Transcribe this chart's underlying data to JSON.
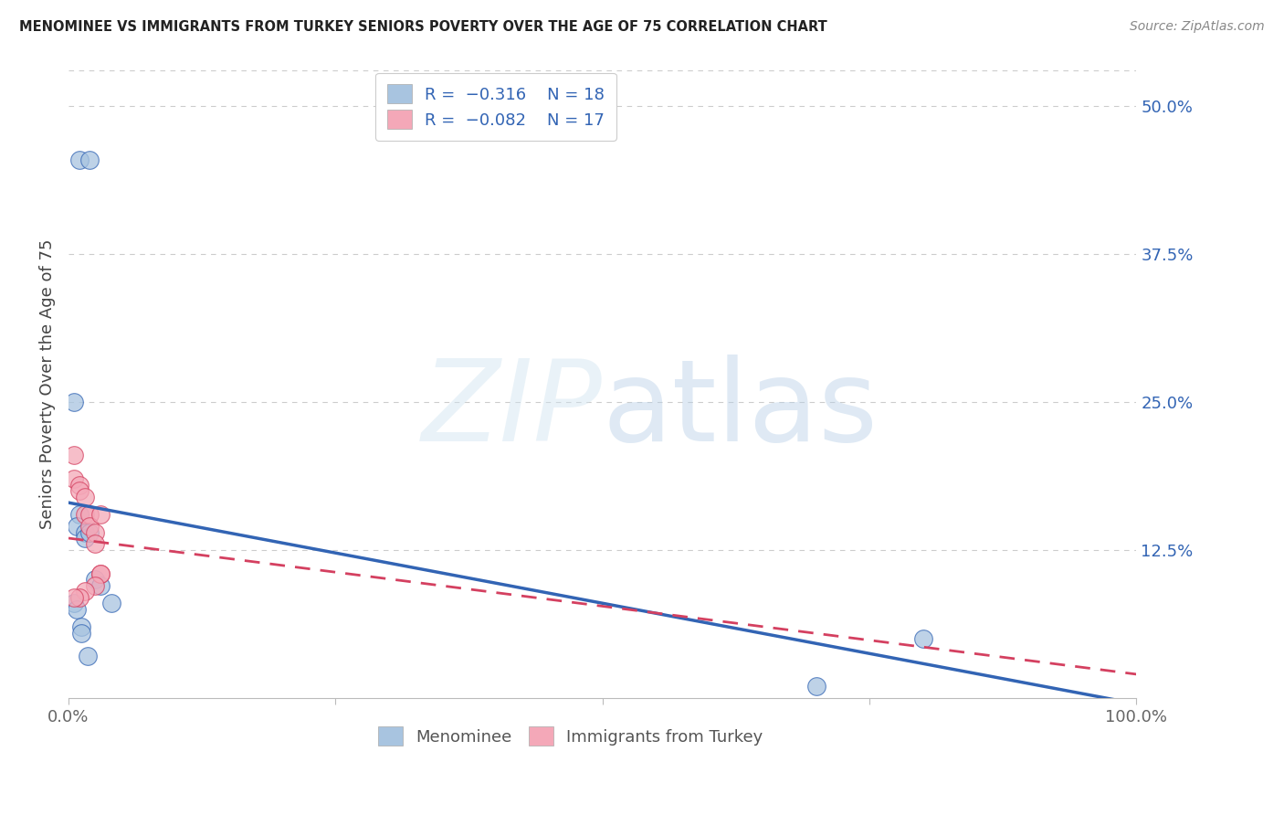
{
  "title": "MENOMINEE VS IMMIGRANTS FROM TURKEY SENIORS POVERTY OVER THE AGE OF 75 CORRELATION CHART",
  "source": "Source: ZipAtlas.com",
  "ylabel": "Seniors Poverty Over the Age of 75",
  "color_blue": "#a8c4e0",
  "line_blue": "#3264b4",
  "color_pink": "#f4a8b8",
  "line_pink": "#d44060",
  "xlim": [
    0.0,
    1.0
  ],
  "ylim": [
    0.0,
    0.53
  ],
  "yticks_right": [
    0.5,
    0.375,
    0.25,
    0.125
  ],
  "ytick_labels_right": [
    "50.0%",
    "37.5%",
    "25.0%",
    "12.5%"
  ],
  "xtick_positions": [
    0.0,
    0.25,
    0.5,
    0.75,
    1.0
  ],
  "xtick_labels": [
    "0.0%",
    "",
    "",
    "",
    "100.0%"
  ],
  "menominee_x": [
    0.01,
    0.02,
    0.005,
    0.01,
    0.008,
    0.015,
    0.015,
    0.02,
    0.025,
    0.03,
    0.04,
    0.005,
    0.008,
    0.012,
    0.012,
    0.018,
    0.8,
    0.7
  ],
  "menominee_y": [
    0.455,
    0.455,
    0.25,
    0.155,
    0.145,
    0.14,
    0.135,
    0.14,
    0.1,
    0.095,
    0.08,
    0.08,
    0.075,
    0.06,
    0.055,
    0.035,
    0.05,
    0.01
  ],
  "turkey_x": [
    0.005,
    0.005,
    0.01,
    0.01,
    0.015,
    0.015,
    0.02,
    0.02,
    0.025,
    0.03,
    0.025,
    0.03,
    0.03,
    0.025,
    0.015,
    0.01,
    0.005
  ],
  "turkey_y": [
    0.205,
    0.185,
    0.18,
    0.175,
    0.17,
    0.155,
    0.155,
    0.145,
    0.14,
    0.155,
    0.13,
    0.105,
    0.105,
    0.095,
    0.09,
    0.085,
    0.085
  ],
  "blue_line_x0": 0.0,
  "blue_line_y0": 0.165,
  "blue_line_x1": 1.0,
  "blue_line_y1": -0.005,
  "pink_line_x0": 0.0,
  "pink_line_y0": 0.135,
  "pink_line_x1": 1.0,
  "pink_line_y1": 0.02
}
